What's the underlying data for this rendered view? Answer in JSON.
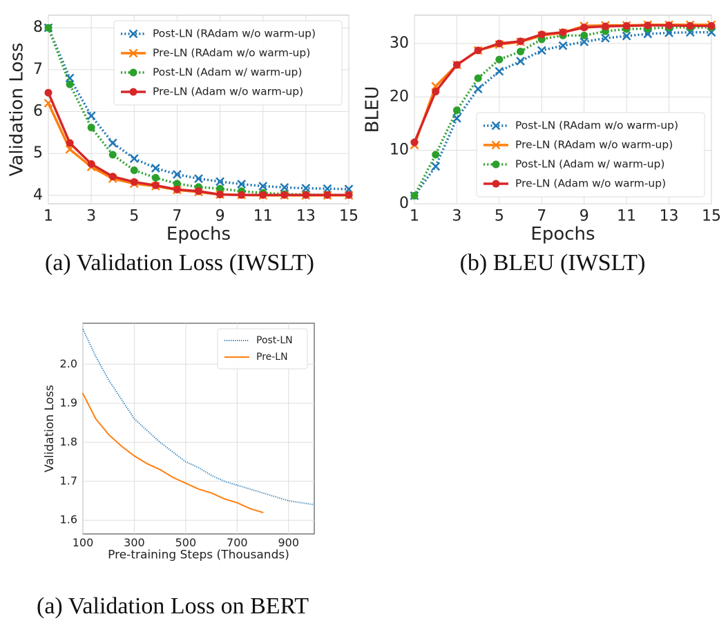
{
  "chart_data": [
    {
      "type": "line",
      "caption": "(a) Validation Loss (IWSLT)",
      "xlabel": "Epochs",
      "ylabel": "Validation Loss",
      "x": [
        1,
        2,
        3,
        4,
        5,
        6,
        7,
        8,
        9,
        10,
        11,
        12,
        13,
        14,
        15
      ],
      "xlim": [
        1,
        15
      ],
      "xticks": [
        1,
        3,
        5,
        7,
        9,
        11,
        13,
        15
      ],
      "ylim": [
        3.8,
        8.3
      ],
      "yticks": [
        4,
        5,
        6,
        7,
        8
      ],
      "grid": true,
      "legend": "upper right",
      "series": [
        {
          "name": "Post-LN (RAdam w/o warm-up)",
          "color": "#1f77b4",
          "linestyle": "dotted",
          "marker": "x",
          "values": [
            8.0,
            6.8,
            5.9,
            5.25,
            4.88,
            4.65,
            4.5,
            4.4,
            4.33,
            4.27,
            4.22,
            4.19,
            4.17,
            4.16,
            4.15
          ]
        },
        {
          "name": "Pre-LN (RAdam w/o warm-up)",
          "color": "#ff7f0e",
          "linestyle": "solid",
          "marker": "x",
          "values": [
            6.2,
            5.1,
            4.68,
            4.4,
            4.28,
            4.22,
            4.13,
            4.08,
            4.02,
            4.01,
            4.0,
            4.0,
            4.0,
            4.0,
            4.0
          ]
        },
        {
          "name": "Post-LN (Adam w/ warm-up)",
          "color": "#2ca02c",
          "linestyle": "dotted",
          "marker": "o",
          "values": [
            8.0,
            6.65,
            5.62,
            4.97,
            4.6,
            4.42,
            4.28,
            4.2,
            4.16,
            4.1,
            4.06,
            4.03,
            4.02,
            4.01,
            4.01
          ]
        },
        {
          "name": "Pre-LN (Adam w/o warm-up)",
          "color": "#d62728",
          "linestyle": "solid",
          "marker": "o",
          "values": [
            6.45,
            5.25,
            4.75,
            4.45,
            4.32,
            4.24,
            4.14,
            4.1,
            4.02,
            4.01,
            4.01,
            4.01,
            4.01,
            4.01,
            4.01
          ]
        }
      ]
    },
    {
      "type": "line",
      "caption": "(b) BLEU (IWSLT)",
      "xlabel": "Epochs",
      "ylabel": "BLEU",
      "x": [
        1,
        2,
        3,
        4,
        5,
        6,
        7,
        8,
        9,
        10,
        11,
        12,
        13,
        14,
        15
      ],
      "xlim": [
        1,
        15
      ],
      "xticks": [
        1,
        3,
        5,
        7,
        9,
        11,
        13,
        15
      ],
      "ylim": [
        0,
        35.3
      ],
      "yticks": [
        0,
        10,
        20,
        30
      ],
      "grid": true,
      "legend": "lower right",
      "series": [
        {
          "name": "Post-LN (RAdam w/o warm-up)",
          "color": "#1f77b4",
          "linestyle": "dotted",
          "marker": "x",
          "values": [
            1.5,
            7,
            16,
            21.5,
            24.8,
            26.7,
            28.7,
            29.6,
            30.3,
            31,
            31.4,
            31.8,
            32,
            32.1,
            32.1
          ]
        },
        {
          "name": "Pre-LN (RAdam w/o warm-up)",
          "color": "#ff7f0e",
          "linestyle": "solid",
          "marker": "x",
          "values": [
            11,
            22,
            26,
            28.7,
            29.8,
            30.3,
            31.5,
            32,
            33.3,
            33.4,
            33.4,
            33.5,
            33.5,
            33.5,
            33.5
          ]
        },
        {
          "name": "Post-LN (Adam w/ warm-up)",
          "color": "#2ca02c",
          "linestyle": "dotted",
          "marker": "o",
          "values": [
            1.5,
            9.2,
            17.5,
            23.5,
            27,
            28.5,
            30.8,
            31.5,
            31.5,
            32.3,
            32.7,
            32.8,
            33,
            33,
            33
          ]
        },
        {
          "name": "Pre-LN (Adam w/o warm-up)",
          "color": "#d62728",
          "linestyle": "solid",
          "marker": "o",
          "values": [
            11.5,
            21,
            26,
            28.7,
            30,
            30.4,
            31.7,
            32.1,
            33,
            33.2,
            33.3,
            33.4,
            33.4,
            33.3,
            33.3
          ]
        }
      ]
    },
    {
      "type": "line",
      "caption": "(a) Validation Loss on BERT",
      "xlabel": "Pre-training Steps (Thousands)",
      "ylabel": "Validation Loss",
      "xlim": [
        100,
        1000
      ],
      "xticks": [
        100,
        300,
        500,
        700,
        900
      ],
      "ylim": [
        1.565,
        2.105
      ],
      "yticks": [
        1.6,
        1.7,
        1.8,
        1.9,
        {
          "value": 2,
          "label": "2.0"
        }
      ],
      "grid": true,
      "legend": "upper right",
      "series": [
        {
          "name": "Post-LN",
          "color": "#1f77b4",
          "linestyle": "dotted",
          "marker": "none",
          "x": [
            100,
            150,
            200,
            250,
            300,
            350,
            400,
            450,
            500,
            550,
            600,
            650,
            700,
            750,
            800,
            850,
            900,
            950,
            1000
          ],
          "values": [
            2.09,
            2.02,
            1.96,
            1.91,
            1.86,
            1.83,
            1.8,
            1.775,
            1.75,
            1.735,
            1.715,
            1.7,
            1.69,
            1.68,
            1.67,
            1.66,
            1.65,
            1.645,
            1.64
          ]
        },
        {
          "name": "Pre-LN",
          "color": "#ff7f0e",
          "linestyle": "solid",
          "marker": "none",
          "x": [
            100,
            150,
            200,
            250,
            300,
            350,
            400,
            450,
            500,
            550,
            600,
            650,
            700,
            750,
            800
          ],
          "values": [
            1.925,
            1.86,
            1.82,
            1.79,
            1.765,
            1.745,
            1.73,
            1.71,
            1.695,
            1.68,
            1.67,
            1.655,
            1.645,
            1.63,
            1.62
          ]
        }
      ]
    }
  ]
}
